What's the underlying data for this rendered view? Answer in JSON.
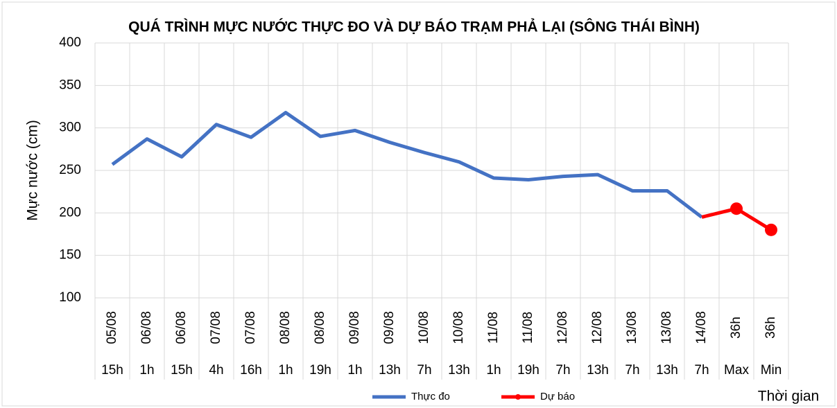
{
  "chart_data": {
    "type": "line",
    "title": "QUÁ TRÌNH MỰC NƯỚC THỰC ĐO VÀ DỰ BÁO TRẠM PHẢ LẠI (SÔNG THÁI BÌNH)",
    "y_label": "Mực nước (cm)",
    "x_label": "Thời gian",
    "categories": [
      {
        "date": "05/08",
        "time": "15h"
      },
      {
        "date": "06/08",
        "time": "1h"
      },
      {
        "date": "06/08",
        "time": "15h"
      },
      {
        "date": "07/08",
        "time": "4h"
      },
      {
        "date": "07/08",
        "time": "16h"
      },
      {
        "date": "08/08",
        "time": "1h"
      },
      {
        "date": "08/08",
        "time": "19h"
      },
      {
        "date": "09/08",
        "time": "1h"
      },
      {
        "date": "09/08",
        "time": "13h"
      },
      {
        "date": "10/08",
        "time": "7h"
      },
      {
        "date": "10/08",
        "time": "13h"
      },
      {
        "date": "11/08",
        "time": "1h"
      },
      {
        "date": "11/08",
        "time": "19h"
      },
      {
        "date": "12/08",
        "time": "7h"
      },
      {
        "date": "12/08",
        "time": "13h"
      },
      {
        "date": "13/08",
        "time": "7h"
      },
      {
        "date": "13/08",
        "time": "13h"
      },
      {
        "date": "14/08",
        "time": "7h"
      },
      {
        "date": "36h",
        "time": "Max"
      },
      {
        "date": "36h",
        "time": "Min"
      }
    ],
    "series": [
      {
        "name": "Thực đo",
        "color": "#4472c4",
        "markers": false,
        "values": [
          257,
          287,
          266,
          304,
          289,
          318,
          290,
          297,
          283,
          271,
          260,
          241,
          239,
          243,
          245,
          226,
          226,
          195,
          null,
          null
        ]
      },
      {
        "name": "Dự báo",
        "color": "#ff0000",
        "markers": true,
        "values": [
          null,
          null,
          null,
          null,
          null,
          null,
          null,
          null,
          null,
          null,
          null,
          null,
          null,
          null,
          null,
          null,
          null,
          195,
          205,
          180
        ]
      }
    ],
    "ylim": [
      100,
      400
    ],
    "yticks": [
      100,
      150,
      200,
      250,
      300,
      350,
      400
    ],
    "grid": true,
    "legend": "bottom"
  }
}
